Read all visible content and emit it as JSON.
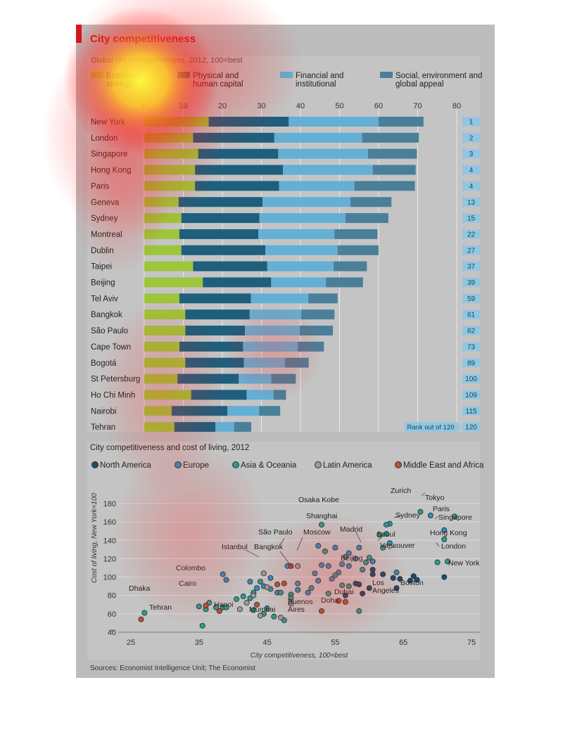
{
  "title": "City competitiveness",
  "source": "Sources: Economist Intelligence Unit; The Economist",
  "colors": {
    "economic": "#9dc63b",
    "physical": "#1d5f7d",
    "financial": "#64afd5",
    "social": "#4a7f9a",
    "north_america": "#1a4d6d",
    "europe": "#2d8fbf",
    "asia_oceania": "#2f9a8e",
    "latin_america": "#9a9a9a",
    "middle_east_africa": "#b5533a"
  },
  "chart_data": [
    {
      "type": "bar",
      "stacked": true,
      "orientation": "horizontal",
      "title": "Global city competitiveness, 2012, 100=best",
      "xlim": [
        0,
        80
      ],
      "xticks": [
        0,
        10,
        20,
        30,
        40,
        50,
        60,
        70,
        80
      ],
      "grid": true,
      "legend": "top",
      "categories": [
        "New York",
        "London",
        "Singapore",
        "Hong Kong",
        "Paris",
        "Geneva",
        "Sydney",
        "Montreal",
        "Dublin",
        "Taipei",
        "Beijing",
        "Tel Aviv",
        "Bangkok",
        "São Paulo",
        "Cape Town",
        "Bogotá",
        "St Petersburg",
        "Ho Chi Minh",
        "Nairobi",
        "Tehran"
      ],
      "series": [
        {
          "name": "Economic strength",
          "values": [
            16.5,
            12.5,
            13.8,
            13.0,
            13.0,
            8.8,
            9.5,
            9.0,
            9.5,
            12.5,
            15.0,
            9.0,
            10.5,
            10.5,
            9.0,
            10.5,
            8.5,
            12.0,
            7.0,
            7.7
          ]
        },
        {
          "name": "Physical and human capital",
          "values": [
            20.5,
            20.8,
            20.5,
            22.5,
            21.5,
            21.5,
            20.0,
            20.2,
            21.5,
            19.0,
            17.5,
            18.3,
            16.5,
            15.3,
            16.3,
            15.0,
            15.7,
            14.2,
            14.3,
            10.5
          ]
        },
        {
          "name": "Financial and institutional",
          "values": [
            23.0,
            22.5,
            23.0,
            23.0,
            19.3,
            22.5,
            22.0,
            19.5,
            18.5,
            17.0,
            14.0,
            14.7,
            13.2,
            14.0,
            14.0,
            10.5,
            8.3,
            6.9,
            8.1,
            4.8
          ]
        },
        {
          "name": "Social, environment and global appeal",
          "values": [
            11.5,
            14.5,
            12.5,
            11.0,
            15.5,
            10.5,
            11.0,
            11.0,
            10.5,
            8.5,
            9.5,
            7.5,
            8.5,
            8.5,
            6.7,
            6.1,
            6.3,
            3.2,
            5.4,
            4.4
          ]
        }
      ],
      "ranks": [
        "1",
        "2",
        "3",
        "4",
        "4",
        "13",
        "15",
        "22",
        "27",
        "37",
        "39",
        "59",
        "61",
        "62",
        "73",
        "89",
        "100",
        "109",
        "115",
        "120"
      ],
      "rank_label": "Rank out of 120"
    },
    {
      "type": "scatter",
      "title": "City competitiveness and cost of living, 2012",
      "xlabel": "City competitiveness, 100=best",
      "ylabel": "Cost of living, New York=100",
      "xlim": [
        25,
        75
      ],
      "ylim": [
        40,
        180
      ],
      "xticks": [
        25,
        35,
        45,
        55,
        65,
        75
      ],
      "yticks": [
        40,
        60,
        80,
        100,
        120,
        140,
        160,
        180
      ],
      "grid": true,
      "legend": "top",
      "series": [
        {
          "name": "North America",
          "points": [
            [
              71.0,
              100
            ],
            [
              60.5,
              108
            ],
            [
              62.0,
              103
            ],
            [
              63.5,
              99
            ],
            [
              64.5,
              98
            ],
            [
              66.0,
              96
            ],
            [
              66.5,
              101
            ],
            [
              67.0,
              97
            ],
            [
              60.5,
              103
            ],
            [
              58.0,
              93
            ],
            [
              56.5,
              80
            ],
            [
              64.0,
              88
            ],
            [
              60.0,
              88
            ],
            [
              59.0,
              82
            ],
            [
              58.5,
              92
            ]
          ]
        },
        {
          "name": "Europe",
          "points": [
            [
              69.0,
              167
            ],
            [
              71.0,
              151
            ],
            [
              63.0,
              158
            ],
            [
              63.0,
              137
            ],
            [
              59.0,
              108
            ],
            [
              60.5,
              117
            ],
            [
              58.0,
              120
            ],
            [
              57.0,
              112
            ],
            [
              54.0,
              112
            ],
            [
              53.0,
              113
            ],
            [
              52.0,
              104
            ],
            [
              51.0,
              83
            ],
            [
              52.5,
              96
            ],
            [
              55.5,
              105
            ],
            [
              56.0,
              114
            ],
            [
              58.5,
              132
            ],
            [
              48.0,
              112
            ],
            [
              45.5,
              99
            ],
            [
              44.5,
              90
            ],
            [
              46.5,
              83
            ],
            [
              43.5,
              88
            ],
            [
              42.5,
              95
            ],
            [
              39.0,
              97
            ],
            [
              38.5,
              103
            ],
            [
              57.0,
              126
            ],
            [
              64.0,
              105
            ],
            [
              55.0,
              132
            ],
            [
              52.5,
              134
            ],
            [
              54.5,
              98
            ],
            [
              49.5,
              86
            ]
          ]
        },
        {
          "name": "Asia & Oceania",
          "points": [
            [
              67.5,
              171
            ],
            [
              72.5,
              166
            ],
            [
              53.0,
              157
            ],
            [
              62.5,
              157
            ],
            [
              62.5,
              147
            ],
            [
              71.0,
              141
            ],
            [
              61.5,
              146
            ],
            [
              70.0,
              116
            ],
            [
              71.5,
              117
            ],
            [
              59.5,
              116
            ],
            [
              60.0,
              121
            ],
            [
              53.5,
              128
            ],
            [
              56.5,
              122
            ],
            [
              55.0,
              102
            ],
            [
              56.0,
              91
            ],
            [
              57.0,
              90
            ],
            [
              54.0,
              82
            ],
            [
              51.5,
              88
            ],
            [
              49.5,
              93
            ],
            [
              48.5,
              81
            ],
            [
              45.5,
              87
            ],
            [
              47.0,
              83
            ],
            [
              44.0,
              95
            ],
            [
              43.0,
              83
            ],
            [
              42.5,
              77
            ],
            [
              41.5,
              79
            ],
            [
              40.5,
              76
            ],
            [
              38.5,
              67
            ],
            [
              39.0,
              67
            ],
            [
              37.5,
              67
            ],
            [
              36.5,
              72
            ],
            [
              36.0,
              65
            ],
            [
              35.0,
              68
            ],
            [
              35.5,
              47
            ],
            [
              27.0,
              61
            ],
            [
              45.0,
              66
            ],
            [
              46.0,
              57
            ],
            [
              47.5,
              53
            ],
            [
              44.5,
              60
            ],
            [
              43.0,
              64
            ],
            [
              48.5,
              77
            ],
            [
              58.5,
              63
            ],
            [
              62.0,
              132
            ]
          ]
        },
        {
          "name": "Latin America",
          "points": [
            [
              49.5,
              112
            ],
            [
              44.5,
              104
            ],
            [
              42.0,
              72
            ],
            [
              41.0,
              65
            ],
            [
              44.0,
              58
            ],
            [
              47.0,
              56
            ],
            [
              48.5,
              71
            ],
            [
              43.0,
              80
            ],
            [
              45.0,
              89
            ]
          ]
        },
        {
          "name": "Middle East and Africa",
          "points": [
            [
              48.5,
              112
            ],
            [
              47.5,
              93
            ],
            [
              43.5,
              70
            ],
            [
              38.0,
              63
            ],
            [
              53.0,
              63
            ],
            [
              55.5,
              74
            ],
            [
              56.5,
              73
            ],
            [
              26.5,
              54
            ],
            [
              36.0,
              69
            ],
            [
              46.5,
              92
            ]
          ]
        }
      ],
      "annotations": [
        "Zurich",
        "Tokyo",
        "Osaka Kobe",
        "Paris",
        "Singapore",
        "Shanghai",
        "Sydney",
        "São Paulo",
        "Moscow",
        "Madrid",
        "Hong Kong",
        "Seoul",
        "Istanbul",
        "Bangkok",
        "Vancouver",
        "London",
        "Beijing",
        "New York",
        "Colombo",
        "Los Angeles",
        "Boston",
        "Cairo",
        "Dhaka",
        "Dubai",
        "Hanoi",
        "Buenos Aires",
        "Doha",
        "Tehran",
        "Mumbai"
      ]
    }
  ]
}
